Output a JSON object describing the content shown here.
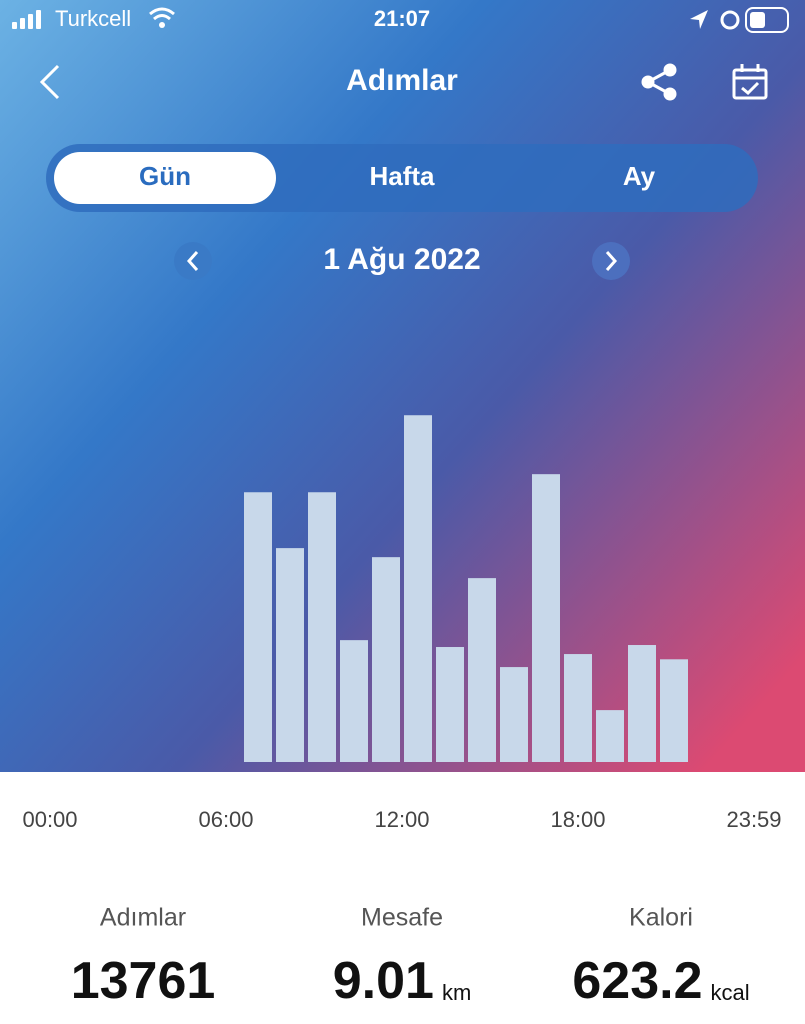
{
  "status_bar": {
    "carrier": "Turkcell",
    "time": "21:07"
  },
  "header": {
    "title": "Adımlar"
  },
  "tabs": [
    "Gün",
    "Hafta",
    "Ay"
  ],
  "date": "1 Ağu 2022",
  "chart_data": {
    "type": "bar",
    "categories": [
      null,
      null,
      null,
      null,
      null,
      null,
      null,
      null,
      null,
      null,
      null,
      null,
      null,
      null
    ],
    "values": [
      1492,
      1183,
      1492,
      674,
      1133,
      1918,
      636,
      1017,
      525,
      1592,
      597,
      287,
      647,
      568
    ],
    "color": "#c8d8ea",
    "ylim": [
      0,
      2500
    ],
    "x_labels": [
      "00:00",
      "06:00",
      "12:00",
      "18:00",
      "23:59"
    ]
  },
  "stats": [
    {
      "label": "Adımlar",
      "value": 13761
    },
    {
      "label": "Mesafe",
      "value": 9.01,
      "unit": "km"
    },
    {
      "label": "Kalori",
      "value": 623.2,
      "unit": "kcal"
    }
  ]
}
